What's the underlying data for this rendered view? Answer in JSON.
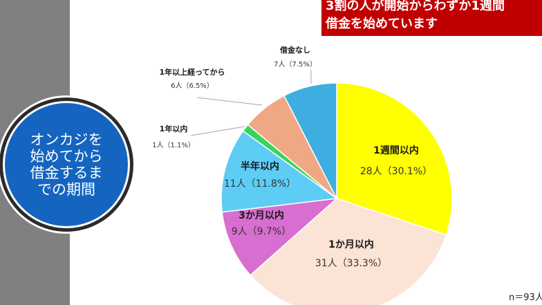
{
  "banner": {
    "line1": "3割の人が開始からわずか1週間",
    "line2": "借金を始めています"
  },
  "side_title": "オンカジを\n始めてから\n借金するま\nでの期間",
  "sample_size": "n＝93人",
  "colors": {
    "sidebar": "#808080",
    "banner": "#c00000",
    "badge": "#1565c0"
  },
  "chart_data": {
    "type": "pie",
    "title": "",
    "start_angle_deg": 0,
    "direction": "clockwise",
    "slices": [
      {
        "label": "1週間以内",
        "value_label": "28人（30.1%）",
        "count": 28,
        "percent": 30.1,
        "color": "#ffff00",
        "label_style": "inside"
      },
      {
        "label": "1か月以内",
        "value_label": "31人（33.3%）",
        "count": 31,
        "percent": 33.3,
        "color": "#fbe3d6",
        "label_style": "inside"
      },
      {
        "label": "3か月以内",
        "value_label": "9人（9.7%）",
        "count": 9,
        "percent": 9.7,
        "color": "#d86ed0",
        "label_style": "inside"
      },
      {
        "label": "半年以内",
        "value_label": "11人（11.8%）",
        "count": 11,
        "percent": 11.8,
        "color": "#5ecdf5",
        "label_style": "inside"
      },
      {
        "label": "1年以内",
        "value_label": "1人（1.1%）",
        "count": 1,
        "percent": 1.1,
        "color": "#3ad35e",
        "label_style": "outside"
      },
      {
        "label": "1年以上経ってから",
        "value_label": "6人（6.5%）",
        "count": 6,
        "percent": 6.5,
        "color": "#f0a884",
        "label_style": "outside"
      },
      {
        "label": "借金なし",
        "value_label": "7人（7.5%）",
        "count": 7,
        "percent": 7.5,
        "color": "#3eaee0",
        "label_style": "outside"
      }
    ]
  }
}
